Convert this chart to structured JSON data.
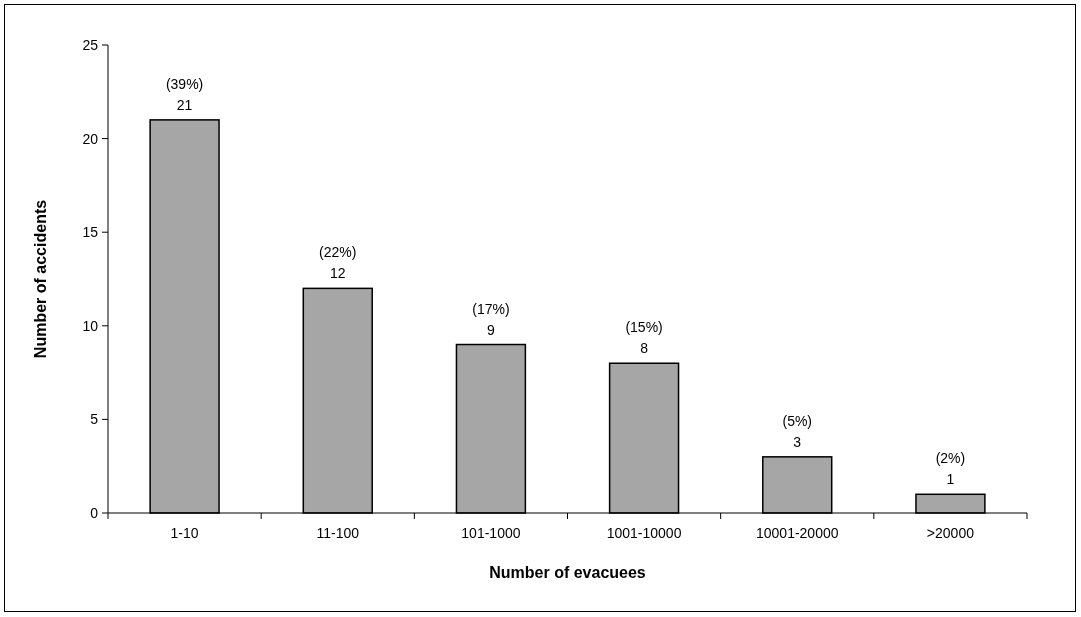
{
  "chart_data": {
    "type": "bar",
    "xlabel": "Number of evacuees",
    "ylabel": "Number of accidents",
    "categories": [
      "1-10",
      "11-100",
      "101-1000",
      "1001-10000",
      "10001-20000",
      ">20000"
    ],
    "values": [
      21,
      12,
      9,
      8,
      3,
      1
    ],
    "value_labels": [
      "(39%)\n21",
      "(22%)\n12",
      "(17%)\n9",
      "(15%)\n8",
      "(5%)\n3",
      "(2%)\n1"
    ],
    "color": "#a6a6a6",
    "ylim": [
      0,
      25
    ],
    "yticks": [
      0,
      5,
      10,
      15,
      20,
      25
    ],
    "grid": false
  }
}
